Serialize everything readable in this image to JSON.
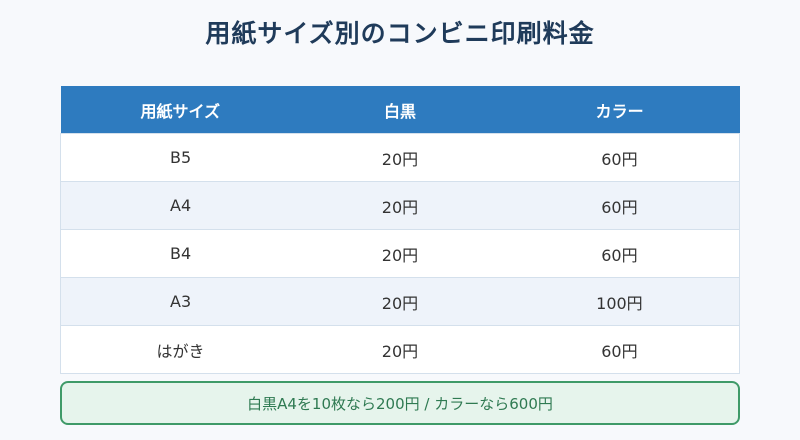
{
  "title": "用紙サイズ別のコンビニ印刷料金",
  "table": {
    "headers": [
      "用紙サイズ",
      "白黒",
      "カラー"
    ],
    "rows": [
      [
        "B5",
        "20円",
        "60円"
      ],
      [
        "A4",
        "20円",
        "60円"
      ],
      [
        "B4",
        "20円",
        "60円"
      ],
      [
        "A3",
        "20円",
        "100円"
      ],
      [
        "はがき",
        "20円",
        "60円"
      ]
    ]
  },
  "note": "白黒A4を10枚なら200円 / カラーなら600円",
  "colors": {
    "header_bg": "#2e7bbf",
    "title": "#1f3b5a",
    "note_border": "#3f9a68",
    "note_bg": "#e6f4ec"
  }
}
